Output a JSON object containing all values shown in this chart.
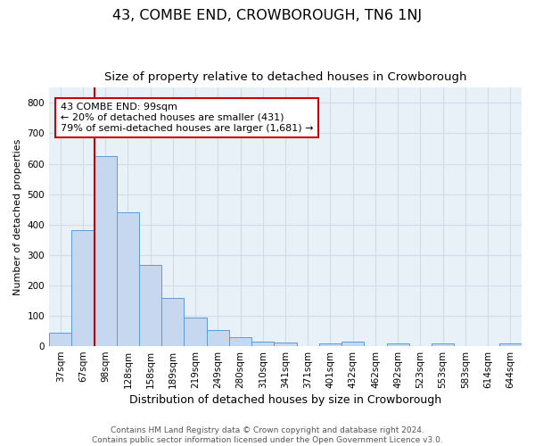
{
  "title": "43, COMBE END, CROWBOROUGH, TN6 1NJ",
  "subtitle": "Size of property relative to detached houses in Crowborough",
  "xlabel": "Distribution of detached houses by size in Crowborough",
  "ylabel": "Number of detached properties",
  "categories": [
    "37sqm",
    "67sqm",
    "98sqm",
    "128sqm",
    "158sqm",
    "189sqm",
    "219sqm",
    "249sqm",
    "280sqm",
    "310sqm",
    "341sqm",
    "371sqm",
    "401sqm",
    "432sqm",
    "462sqm",
    "492sqm",
    "523sqm",
    "553sqm",
    "583sqm",
    "614sqm",
    "644sqm"
  ],
  "values": [
    45,
    383,
    625,
    440,
    268,
    158,
    95,
    52,
    30,
    15,
    12,
    0,
    10,
    15,
    0,
    10,
    0,
    10,
    0,
    0,
    8
  ],
  "bar_color": "#c5d8f0",
  "bar_edge_color": "#5b9bd5",
  "annotation_label": "43 COMBE END: 99sqm",
  "annotation_line1": "← 20% of detached houses are smaller (431)",
  "annotation_line2": "79% of semi-detached houses are larger (1,681) →",
  "annotation_box_color": "#ffffff",
  "annotation_box_edge": "#cc0000",
  "red_line_color": "#cc0000",
  "ylim": [
    0,
    850
  ],
  "yticks": [
    0,
    100,
    200,
    300,
    400,
    500,
    600,
    700,
    800
  ],
  "grid_color": "#d0dce8",
  "bg_color": "#e8f0f8",
  "footer1": "Contains HM Land Registry data © Crown copyright and database right 2024.",
  "footer2": "Contains public sector information licensed under the Open Government Licence v3.0.",
  "title_fontsize": 11.5,
  "subtitle_fontsize": 9.5,
  "xlabel_fontsize": 9,
  "ylabel_fontsize": 8,
  "tick_fontsize": 7.5,
  "annot_fontsize": 8,
  "footer_fontsize": 6.5
}
